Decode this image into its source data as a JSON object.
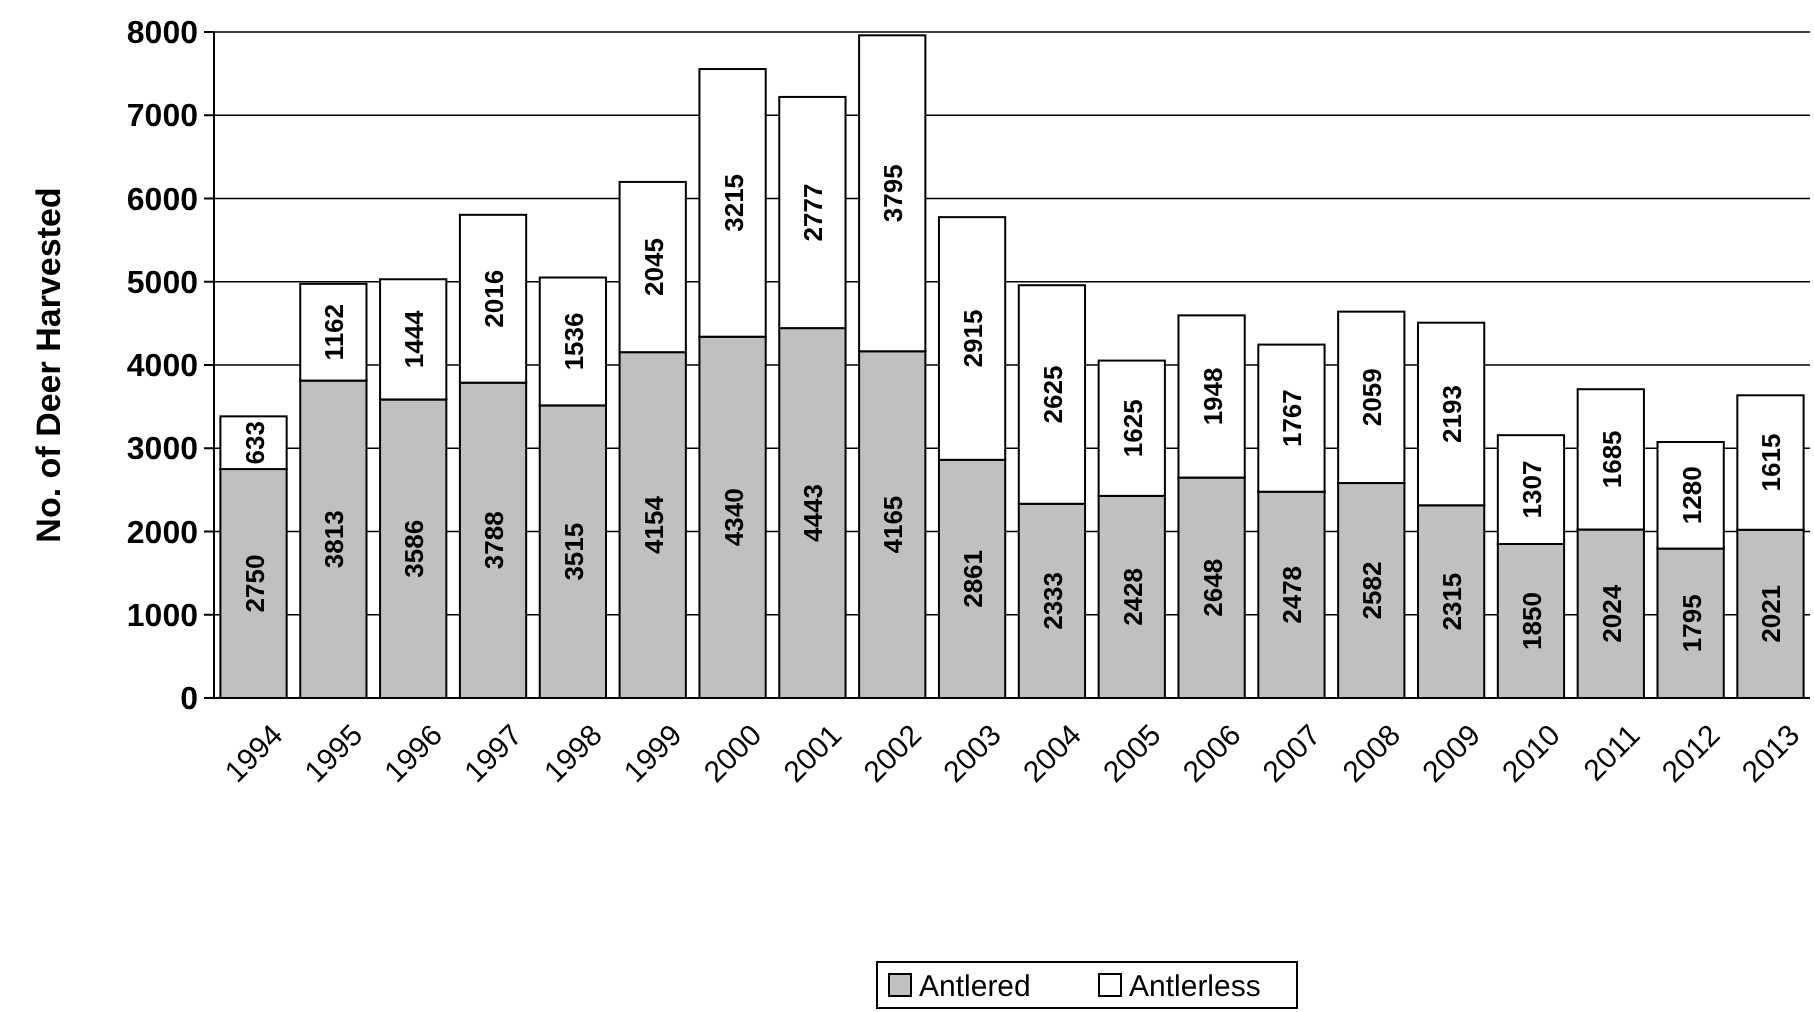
{
  "chart_data": {
    "type": "bar",
    "ylabel": "No. of Deer Harvested",
    "categories": [
      "1994",
      "1995",
      "1996",
      "1997",
      "1998",
      "1999",
      "2000",
      "2001",
      "2002",
      "2003",
      "2004",
      "2005",
      "2006",
      "2007",
      "2008",
      "2009",
      "2010",
      "2011",
      "2012",
      "2013"
    ],
    "series": [
      {
        "name": "Antlered",
        "color": "#c0c0c0",
        "values": [
          2750,
          3813,
          3586,
          3788,
          3515,
          4154,
          4340,
          4443,
          4165,
          2861,
          2333,
          2428,
          2648,
          2478,
          2582,
          2315,
          1850,
          2024,
          1795,
          2021
        ]
      },
      {
        "name": "Antlerless",
        "color": "#ffffff",
        "values": [
          633,
          1162,
          1444,
          2016,
          1536,
          2045,
          3215,
          2777,
          3795,
          2915,
          2625,
          1625,
          1948,
          1767,
          2059,
          2193,
          1307,
          1685,
          1280,
          1615
        ]
      }
    ],
    "stacked": true,
    "data_labels": true,
    "ylim": [
      0,
      8000
    ],
    "yticks": [
      0,
      1000,
      2000,
      3000,
      4000,
      5000,
      6000,
      7000,
      8000
    ],
    "grid": "y",
    "legend": "bottom"
  }
}
